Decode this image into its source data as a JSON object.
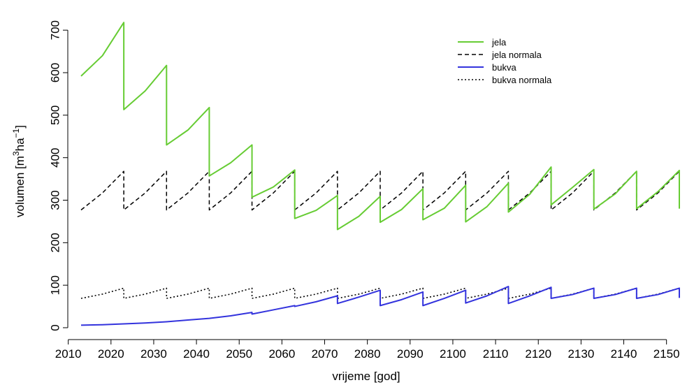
{
  "chart_data": {
    "type": "line",
    "xlabel": "vrijeme [god]",
    "ylabel_parts": {
      "prefix": "volumen [m",
      "sup1": "3",
      "mid": "ha",
      "sup2": "−1",
      "suffix": "]"
    },
    "xlim": [
      2013,
      2153
    ],
    "ylim": [
      0,
      720
    ],
    "xticks": [
      2010,
      2020,
      2030,
      2040,
      2050,
      2060,
      2070,
      2080,
      2090,
      2100,
      2110,
      2120,
      2130,
      2140,
      2150
    ],
    "yticks": [
      0,
      100,
      200,
      300,
      400,
      500,
      600,
      700
    ],
    "legend_position": "top-right",
    "series": [
      {
        "name": "jela",
        "color": "#66cc33",
        "dash": "solid",
        "points": [
          [
            2013,
            592
          ],
          [
            2018,
            640
          ],
          [
            2023,
            718
          ],
          [
            2023,
            513
          ],
          [
            2028,
            557
          ],
          [
            2033,
            617
          ],
          [
            2033,
            430
          ],
          [
            2038,
            465
          ],
          [
            2043,
            518
          ],
          [
            2043,
            357
          ],
          [
            2048,
            388
          ],
          [
            2053,
            430
          ],
          [
            2053,
            307
          ],
          [
            2058,
            331
          ],
          [
            2063,
            371
          ],
          [
            2063,
            257
          ],
          [
            2068,
            276
          ],
          [
            2073,
            311
          ],
          [
            2073,
            231
          ],
          [
            2078,
            262
          ],
          [
            2083,
            309
          ],
          [
            2083,
            248
          ],
          [
            2088,
            278
          ],
          [
            2093,
            327
          ],
          [
            2093,
            254
          ],
          [
            2098,
            281
          ],
          [
            2103,
            335
          ],
          [
            2103,
            249
          ],
          [
            2108,
            285
          ],
          [
            2113,
            340
          ],
          [
            2113,
            272
          ],
          [
            2118,
            314
          ],
          [
            2123,
            378
          ],
          [
            2123,
            289
          ],
          [
            2128,
            330
          ],
          [
            2133,
            372
          ],
          [
            2133,
            279
          ],
          [
            2138,
            315
          ],
          [
            2143,
            368
          ],
          [
            2143,
            280
          ],
          [
            2148,
            320
          ],
          [
            2153,
            370
          ],
          [
            2153,
            280
          ]
        ]
      },
      {
        "name": "jela normala",
        "color": "#000000",
        "dash": "dashed",
        "points": [
          [
            2013,
            277
          ],
          [
            2018,
            317
          ],
          [
            2023,
            368
          ],
          [
            2023,
            277
          ],
          [
            2028,
            317
          ],
          [
            2033,
            368
          ],
          [
            2033,
            277
          ],
          [
            2038,
            317
          ],
          [
            2043,
            368
          ],
          [
            2043,
            277
          ],
          [
            2048,
            317
          ],
          [
            2053,
            368
          ],
          [
            2053,
            277
          ],
          [
            2058,
            317
          ],
          [
            2063,
            368
          ],
          [
            2063,
            277
          ],
          [
            2068,
            317
          ],
          [
            2073,
            368
          ],
          [
            2073,
            277
          ],
          [
            2078,
            317
          ],
          [
            2083,
            368
          ],
          [
            2083,
            277
          ],
          [
            2088,
            317
          ],
          [
            2093,
            368
          ],
          [
            2093,
            277
          ],
          [
            2098,
            317
          ],
          [
            2103,
            368
          ],
          [
            2103,
            277
          ],
          [
            2108,
            317
          ],
          [
            2113,
            368
          ],
          [
            2113,
            277
          ],
          [
            2118,
            317
          ],
          [
            2123,
            368
          ],
          [
            2123,
            277
          ],
          [
            2128,
            317
          ],
          [
            2133,
            368
          ],
          [
            2133,
            277
          ],
          [
            2138,
            317
          ],
          [
            2143,
            368
          ],
          [
            2143,
            277
          ],
          [
            2148,
            317
          ],
          [
            2153,
            368
          ]
        ]
      },
      {
        "name": "bukva",
        "color": "#3333dd",
        "dash": "solid",
        "points": [
          [
            2013,
            6
          ],
          [
            2018,
            7
          ],
          [
            2023,
            9
          ],
          [
            2028,
            11
          ],
          [
            2033,
            14
          ],
          [
            2038,
            18
          ],
          [
            2043,
            22
          ],
          [
            2048,
            28
          ],
          [
            2053,
            36
          ],
          [
            2053,
            32
          ],
          [
            2058,
            42
          ],
          [
            2063,
            52
          ],
          [
            2063,
            50
          ],
          [
            2068,
            61
          ],
          [
            2073,
            75
          ],
          [
            2073,
            57
          ],
          [
            2078,
            72
          ],
          [
            2083,
            88
          ],
          [
            2083,
            52
          ],
          [
            2088,
            66
          ],
          [
            2093,
            84
          ],
          [
            2093,
            52
          ],
          [
            2098,
            69
          ],
          [
            2103,
            88
          ],
          [
            2103,
            58
          ],
          [
            2108,
            75
          ],
          [
            2113,
            97
          ],
          [
            2113,
            57
          ],
          [
            2118,
            75
          ],
          [
            2123,
            95
          ],
          [
            2123,
            69
          ],
          [
            2128,
            78
          ],
          [
            2133,
            93
          ],
          [
            2133,
            69
          ],
          [
            2138,
            78
          ],
          [
            2143,
            93
          ],
          [
            2143,
            69
          ],
          [
            2148,
            78
          ],
          [
            2153,
            93
          ],
          [
            2153,
            70
          ]
        ]
      },
      {
        "name": "bukva normala",
        "color": "#000000",
        "dash": "dotted",
        "points": [
          [
            2013,
            69
          ],
          [
            2018,
            79
          ],
          [
            2023,
            93
          ],
          [
            2023,
            69
          ],
          [
            2028,
            79
          ],
          [
            2033,
            93
          ],
          [
            2033,
            69
          ],
          [
            2038,
            79
          ],
          [
            2043,
            93
          ],
          [
            2043,
            69
          ],
          [
            2048,
            79
          ],
          [
            2053,
            93
          ],
          [
            2053,
            69
          ],
          [
            2058,
            79
          ],
          [
            2063,
            93
          ],
          [
            2063,
            69
          ],
          [
            2068,
            79
          ],
          [
            2073,
            93
          ],
          [
            2073,
            69
          ],
          [
            2078,
            79
          ],
          [
            2083,
            93
          ],
          [
            2083,
            69
          ],
          [
            2088,
            79
          ],
          [
            2093,
            93
          ],
          [
            2093,
            69
          ],
          [
            2098,
            79
          ],
          [
            2103,
            93
          ],
          [
            2103,
            69
          ],
          [
            2108,
            79
          ],
          [
            2113,
            93
          ],
          [
            2113,
            69
          ],
          [
            2118,
            79
          ],
          [
            2123,
            93
          ],
          [
            2123,
            69
          ],
          [
            2128,
            79
          ],
          [
            2133,
            93
          ],
          [
            2133,
            69
          ],
          [
            2138,
            79
          ],
          [
            2143,
            93
          ],
          [
            2143,
            69
          ],
          [
            2148,
            79
          ],
          [
            2153,
            93
          ]
        ]
      }
    ]
  }
}
